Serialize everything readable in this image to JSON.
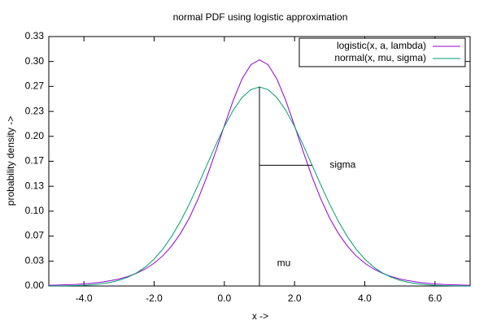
{
  "chart_data": {
    "type": "line",
    "title": "normal PDF using logistic approximation",
    "xlabel": "x ->",
    "ylabel": "probability density ->",
    "x": [
      -5,
      -4.75,
      -4.5,
      -4.25,
      -4,
      -3.75,
      -3.5,
      -3.25,
      -3,
      -2.75,
      -2.5,
      -2.25,
      -2,
      -1.75,
      -1.5,
      -1.25,
      -1,
      -0.75,
      -0.5,
      -0.25,
      0,
      0.25,
      0.5,
      0.75,
      1,
      1.25,
      1.5,
      1.75,
      2,
      2.25,
      2.5,
      2.75,
      3,
      3.25,
      3.5,
      3.75,
      4,
      4.25,
      4.5,
      4.75,
      5,
      5.25,
      5.5,
      5.75,
      6,
      6.25,
      6.5,
      6.75,
      7
    ],
    "series": [
      {
        "name": "logistic(x, a, lambda)",
        "color": "#9400d3",
        "values": [
          0.0009,
          0.0012,
          0.0016,
          0.0021,
          0.0028,
          0.0038,
          0.0052,
          0.007,
          0.0094,
          0.0127,
          0.0171,
          0.0228,
          0.0305,
          0.0405,
          0.0535,
          0.0701,
          0.0907,
          0.1161,
          0.1457,
          0.1791,
          0.2141,
          0.2477,
          0.2763,
          0.2955,
          0.3023,
          0.2955,
          0.2763,
          0.2477,
          0.2141,
          0.1791,
          0.1457,
          0.1161,
          0.0907,
          0.0701,
          0.0535,
          0.0405,
          0.0305,
          0.0228,
          0.0171,
          0.0127,
          0.0094,
          0.007,
          0.0052,
          0.0038,
          0.0028,
          0.0021,
          0.0016,
          0.0012,
          0.0009
        ]
      },
      {
        "name": "normal(x, mu, sigma)",
        "color": "#009e73",
        "values": [
          0.0001,
          0.0002,
          0.0003,
          0.0006,
          0.001,
          0.0018,
          0.003,
          0.0048,
          0.0076,
          0.0117,
          0.0175,
          0.0254,
          0.036,
          0.0495,
          0.0663,
          0.0863,
          0.1093,
          0.1347,
          0.1613,
          0.1879,
          0.213,
          0.2347,
          0.2516,
          0.2623,
          0.266,
          0.2623,
          0.2516,
          0.2347,
          0.213,
          0.1879,
          0.1613,
          0.1347,
          0.1093,
          0.0863,
          0.0663,
          0.0495,
          0.036,
          0.0254,
          0.0175,
          0.0117,
          0.0076,
          0.0048,
          0.003,
          0.0018,
          0.001,
          0.0006,
          0.0003,
          0.0002,
          0.0001
        ]
      }
    ],
    "xlim": [
      -5,
      7
    ],
    "xticks": [
      {
        "value": -4,
        "label": "-4.0"
      },
      {
        "value": -2,
        "label": "-2.0"
      },
      {
        "value": 0,
        "label": "0.0"
      },
      {
        "value": 2,
        "label": "2.0"
      },
      {
        "value": 4,
        "label": "4.0"
      },
      {
        "value": 6,
        "label": "6.0"
      }
    ],
    "ylim": [
      0,
      0.3333
    ],
    "yticks": [
      {
        "value": 0,
        "label": "0.00"
      },
      {
        "value": 0.0333,
        "label": "0.03"
      },
      {
        "value": 0.0667,
        "label": "0.07"
      },
      {
        "value": 0.1,
        "label": "0.10"
      },
      {
        "value": 0.1333,
        "label": "0.13"
      },
      {
        "value": 0.1667,
        "label": "0.17"
      },
      {
        "value": 0.2,
        "label": "0.20"
      },
      {
        "value": 0.2333,
        "label": "0.23"
      },
      {
        "value": 0.2667,
        "label": "0.27"
      },
      {
        "value": 0.3,
        "label": "0.30"
      },
      {
        "value": 0.3333,
        "label": "0.33"
      }
    ],
    "legend": "top-right",
    "annotations": [
      {
        "text": "mu",
        "x": 1.5,
        "y": 0.03
      },
      {
        "text": "sigma",
        "x": 3.0,
        "y": 0.1613
      }
    ],
    "segments": [
      {
        "x": [
          1,
          1
        ],
        "y": [
          0,
          0.266
        ]
      },
      {
        "x": [
          1,
          2.5
        ],
        "y": [
          0.1613,
          0.1613
        ]
      }
    ]
  }
}
